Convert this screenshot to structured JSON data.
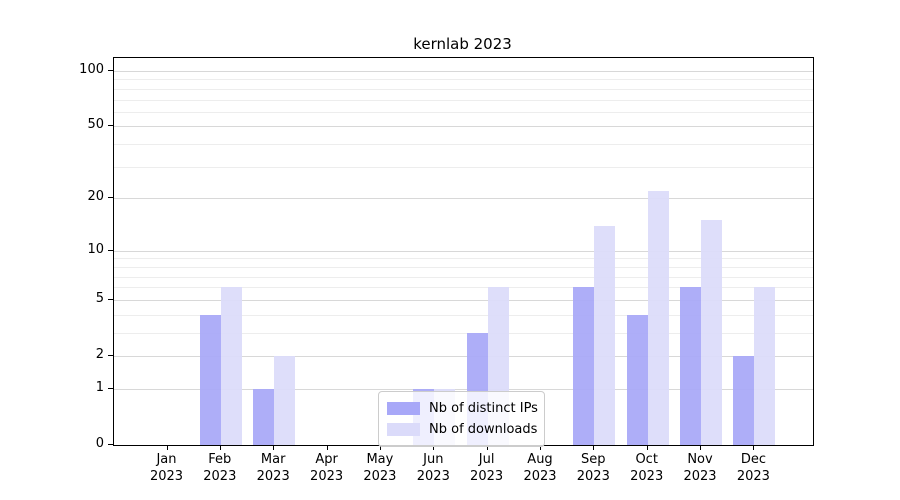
{
  "title": "kernlab 2023",
  "chart_data": {
    "type": "bar",
    "title": "kernlab 2023",
    "categories": [
      "Jan 2023",
      "Feb 2023",
      "Mar 2023",
      "Apr 2023",
      "May 2023",
      "Jun 2023",
      "Jul 2023",
      "Aug 2023",
      "Sep 2023",
      "Oct 2023",
      "Nov 2023",
      "Dec 2023"
    ],
    "months": [
      "Jan",
      "Feb",
      "Mar",
      "Apr",
      "May",
      "Jun",
      "Jul",
      "Aug",
      "Sep",
      "Oct",
      "Nov",
      "Dec"
    ],
    "year": "2023",
    "series": [
      {
        "name": "Nb of distinct IPs",
        "color": "#a8a8f8",
        "values": [
          0,
          4,
          1,
          0,
          0,
          1,
          3,
          0,
          6,
          4,
          6,
          2
        ]
      },
      {
        "name": "Nb of downloads",
        "color": "#dbdbfa",
        "values": [
          0,
          6,
          2,
          0,
          0,
          1,
          6,
          0,
          14,
          22,
          15,
          6
        ]
      }
    ],
    "xlabel": "",
    "ylabel": "",
    "yscale": "log1p",
    "ylim": [
      0,
      100
    ],
    "yticks": [
      100,
      50,
      20,
      10,
      5,
      2,
      1,
      0
    ],
    "grid_major": [
      1,
      2,
      5,
      10,
      20,
      50,
      100
    ],
    "grid_minor": [
      3,
      4,
      6,
      7,
      8,
      9,
      30,
      40,
      60,
      70,
      80,
      90
    ],
    "grid": "on",
    "legend_position": "bottom-center"
  },
  "colors": {
    "grid_major": "#d8d8d8",
    "grid_minor": "#ededed",
    "axis_frame": "#000000",
    "legend_border": "#cccccc",
    "series_dark": "#a8a8f8",
    "series_light": "#dbdbfa"
  }
}
